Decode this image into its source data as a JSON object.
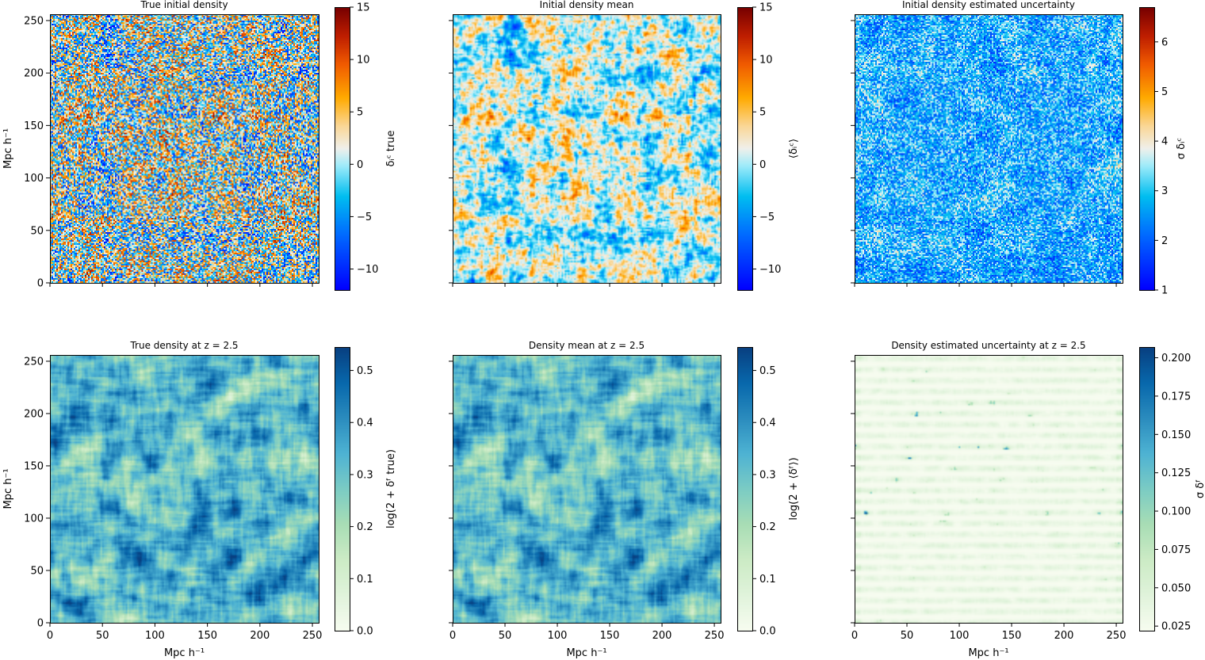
{
  "chart_data": [
    {
      "type": "heatmap",
      "title": "True initial density",
      "xlabel": "",
      "ylabel": "Mpc h⁻¹",
      "xlim": [
        0,
        256
      ],
      "ylim": [
        0,
        256
      ],
      "xticks": [
        0,
        50,
        100,
        150,
        200,
        250
      ],
      "xticklabels_visible": false,
      "yticks": [
        0,
        50,
        100,
        150,
        200,
        250
      ],
      "yticklabels_visible": true,
      "colormap": "blue-cyan-white-orange-red",
      "colorbar": {
        "label": "δᵢᶜ true",
        "range": [
          -12,
          15
        ],
        "ticks": [
          -10,
          -5,
          0,
          5,
          10,
          15
        ],
        "ticklabels": [
          "−10",
          "−5",
          "0",
          "5",
          "10",
          "15"
        ]
      },
      "field": {
        "kind": "noise",
        "seed": 11,
        "scale": 1.0,
        "offset": 0.45,
        "contrast": 1.05
      }
    },
    {
      "type": "heatmap",
      "title": "Initial density mean",
      "xlabel": "",
      "ylabel": "",
      "xlim": [
        0,
        256
      ],
      "ylim": [
        0,
        256
      ],
      "xticks": [
        0,
        50,
        100,
        150,
        200,
        250
      ],
      "xticklabels_visible": false,
      "yticks": [
        0,
        50,
        100,
        150,
        200,
        250
      ],
      "yticklabels_visible": false,
      "colormap": "blue-cyan-white-orange-red",
      "colorbar": {
        "label": "⟨δᵢᶜ⟩",
        "range": [
          -12,
          15
        ],
        "ticks": [
          -10,
          -5,
          0,
          5,
          10,
          15
        ],
        "ticklabels": [
          "−10",
          "−5",
          "0",
          "5",
          "10",
          "15"
        ]
      },
      "field": {
        "kind": "smooth-noise",
        "seed": 11,
        "scale": 0.55,
        "offset": 0.47,
        "contrast": 0.8
      }
    },
    {
      "type": "heatmap",
      "title": "Initial density estimated uncertainty",
      "xlabel": "",
      "ylabel": "",
      "xlim": [
        0,
        256
      ],
      "ylim": [
        0,
        256
      ],
      "xticks": [
        0,
        50,
        100,
        150,
        200,
        250
      ],
      "xticklabels_visible": false,
      "yticks": [
        0,
        50,
        100,
        150,
        200,
        250
      ],
      "yticklabels_visible": false,
      "colormap": "blue-cyan-white-orange-red",
      "colorbar": {
        "label": "σ δᵢᶜ",
        "range": [
          1,
          6.7
        ],
        "ticks": [
          1,
          2,
          3,
          4,
          5,
          6
        ],
        "ticklabels": [
          "1",
          "2",
          "3",
          "4",
          "5",
          "6"
        ]
      },
      "field": {
        "kind": "noise",
        "seed": 29,
        "scale": 1.0,
        "offset": 0.2,
        "contrast": 0.5
      }
    },
    {
      "type": "heatmap",
      "title": "True density at z = 2.5",
      "xlabel": "Mpc h⁻¹",
      "ylabel": "Mpc h⁻¹",
      "xlim": [
        0,
        256
      ],
      "ylim": [
        0,
        256
      ],
      "xticks": [
        0,
        50,
        100,
        150,
        200,
        250
      ],
      "xticklabels_visible": true,
      "yticks": [
        0,
        50,
        100,
        150,
        200,
        250
      ],
      "yticklabels_visible": true,
      "colormap": "GnBu",
      "colorbar": {
        "label": "log(2 + δᶠ true)",
        "range": [
          0.0,
          0.545
        ],
        "ticks": [
          0.0,
          0.1,
          0.2,
          0.3,
          0.4,
          0.5
        ],
        "ticklabels": [
          "0.0",
          "0.1",
          "0.2",
          "0.3",
          "0.4",
          "0.5"
        ]
      },
      "field": {
        "kind": "blobs",
        "seed": 5,
        "scale": 1.0,
        "offset": 0.5,
        "contrast": 1.0
      }
    },
    {
      "type": "heatmap",
      "title": "Density mean at z = 2.5",
      "xlabel": "Mpc h⁻¹",
      "ylabel": "",
      "xlim": [
        0,
        256
      ],
      "ylim": [
        0,
        256
      ],
      "xticks": [
        0,
        50,
        100,
        150,
        200,
        250
      ],
      "xticklabels_visible": true,
      "yticks": [
        0,
        50,
        100,
        150,
        200,
        250
      ],
      "yticklabels_visible": false,
      "colormap": "GnBu",
      "colorbar": {
        "label": "log(2 + ⟨δᶠ⟩)",
        "range": [
          0.0,
          0.545
        ],
        "ticks": [
          0.0,
          0.1,
          0.2,
          0.3,
          0.4,
          0.5
        ],
        "ticklabels": [
          "0.0",
          "0.1",
          "0.2",
          "0.3",
          "0.4",
          "0.5"
        ]
      },
      "field": {
        "kind": "blobs",
        "seed": 5,
        "scale": 1.0,
        "offset": 0.5,
        "contrast": 0.97
      }
    },
    {
      "type": "heatmap",
      "title": "Density estimated uncertainty at z = 2.5",
      "xlabel": "Mpc h⁻¹",
      "ylabel": "",
      "xlim": [
        0,
        256
      ],
      "ylim": [
        0,
        256
      ],
      "xticks": [
        0,
        50,
        100,
        150,
        200,
        250
      ],
      "xticklabels_visible": true,
      "yticks": [
        0,
        50,
        100,
        150,
        200,
        250
      ],
      "yticklabels_visible": false,
      "colormap": "GnBu",
      "colorbar": {
        "label": "σ δᶠ",
        "range": [
          0.022,
          0.207
        ],
        "ticks": [
          0.025,
          0.05,
          0.075,
          0.1,
          0.125,
          0.15,
          0.175,
          0.2
        ],
        "ticklabels": [
          "0.025",
          "0.050",
          "0.075",
          "0.100",
          "0.125",
          "0.150",
          "0.175",
          "0.200"
        ]
      },
      "field": {
        "kind": "stripes",
        "seed": 17,
        "scale": 1.0,
        "offset": 0.1,
        "contrast": 1.0
      }
    }
  ]
}
